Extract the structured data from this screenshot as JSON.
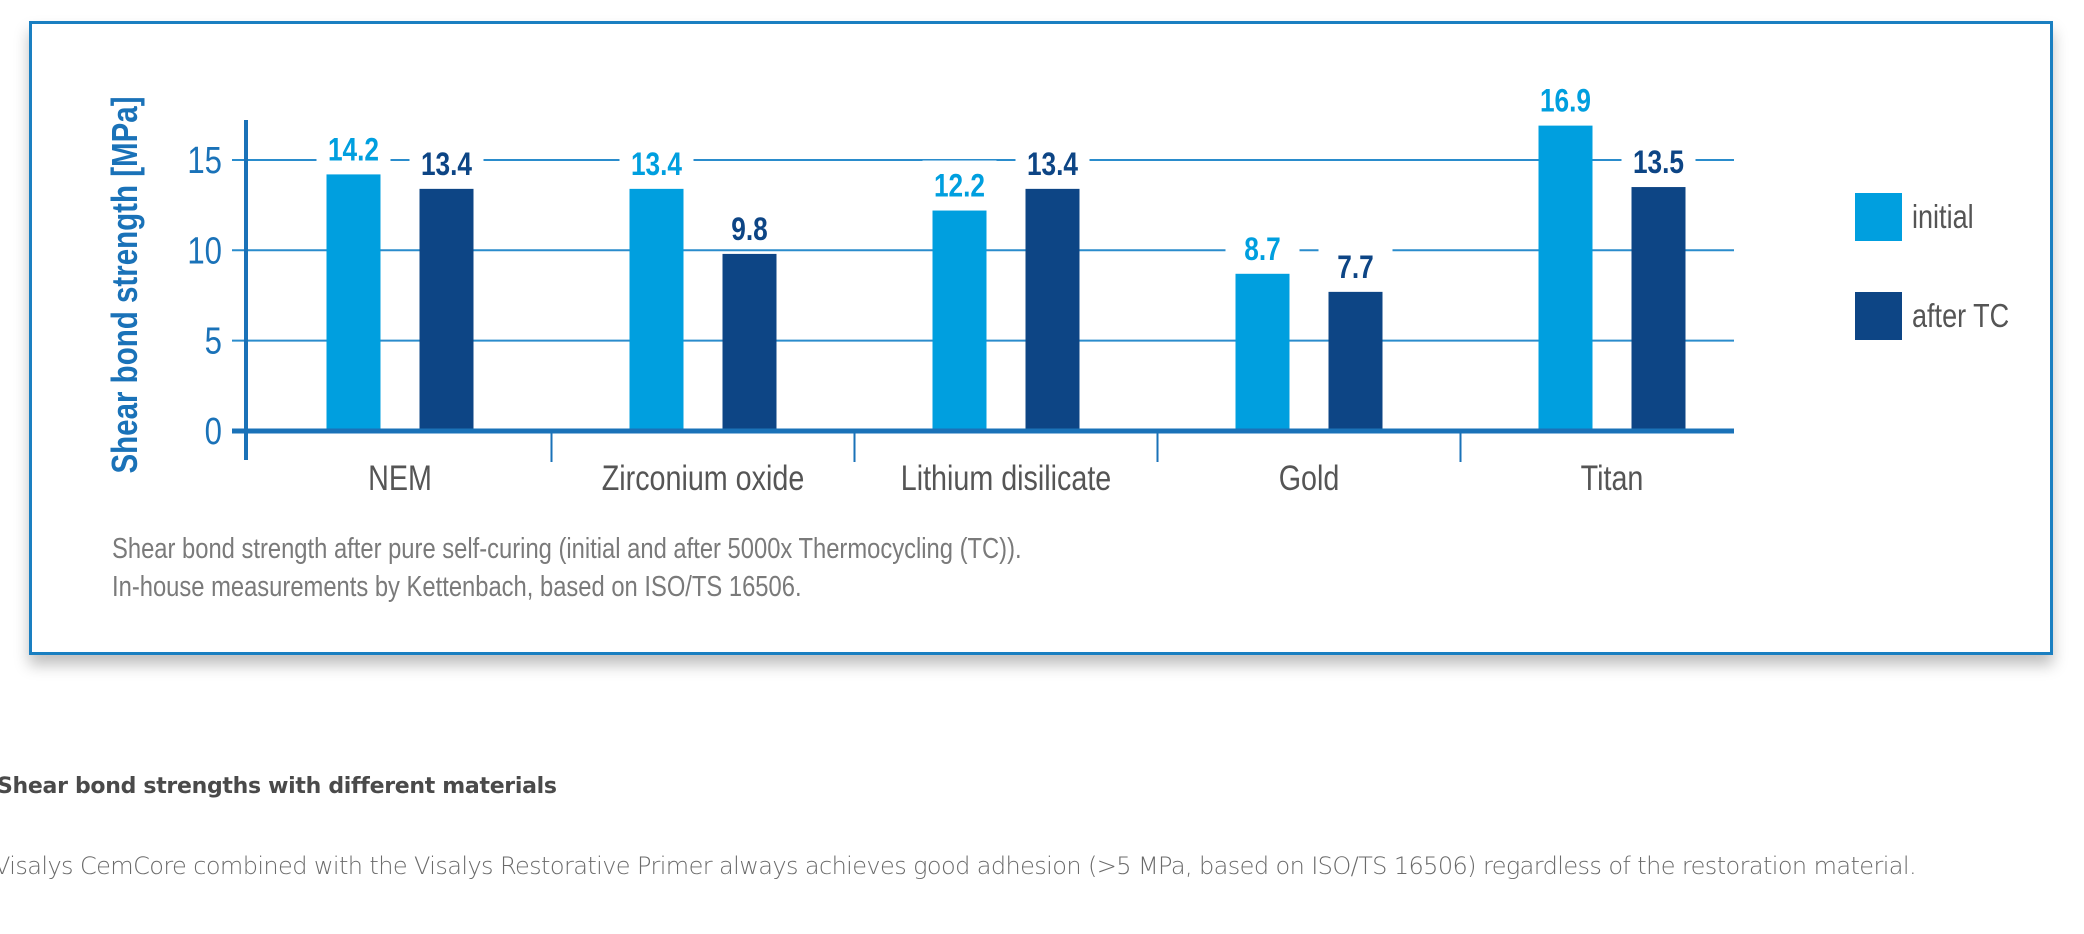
{
  "colors": {
    "initial": "#009fdf",
    "after_tc": "#0d4585",
    "axis": "#1a72b8",
    "grid": "#2a8ccc",
    "text_gray": "#555555"
  },
  "chart_data": {
    "type": "bar",
    "categories": [
      "NEM",
      "Zirconium oxide",
      "Lithium disilicate",
      "Gold",
      "Titan"
    ],
    "series": [
      {
        "name": "initial",
        "values": [
          14.2,
          13.4,
          12.2,
          8.7,
          16.9
        ],
        "labels": [
          "14.2",
          "13.4",
          "12.2",
          "8.7",
          "16.9"
        ]
      },
      {
        "name": "after TC",
        "values": [
          13.4,
          9.8,
          13.4,
          7.7,
          13.5
        ],
        "labels": [
          "13.4",
          "9.8",
          "13.4",
          "7.7",
          "13.5"
        ]
      }
    ],
    "ylabel": "Shear bond strength [MPa]",
    "xlabel": "",
    "yticks": [
      "0",
      "5",
      "10",
      "15"
    ],
    "ylim": [
      0,
      17
    ],
    "grid": true,
    "legend_position": "right",
    "caption": [
      "Shear bond strength after pure self-curing (initial and after 5000x Thermocycling (TC)).",
      "In-house measurements by Kettenbach, based on ISO/TS 16506."
    ]
  },
  "text": {
    "heading": "Shear bond strengths with different materials",
    "paragraph": "Visalys CemCore combined with the Visalys Restorative Primer always achieves good adhesion (>5 MPa, based on ISO/TS 16506) regardless of the restoration material."
  }
}
